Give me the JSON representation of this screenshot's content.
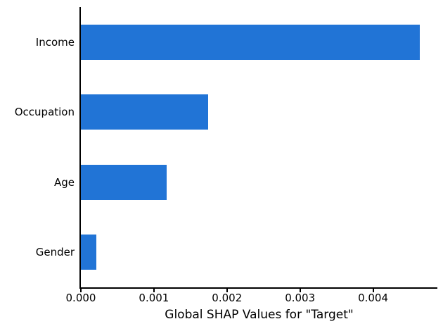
{
  "chart_data": {
    "type": "bar",
    "orientation": "horizontal",
    "title": "",
    "xlabel": "Global SHAP Values for \"Target\"",
    "ylabel": "",
    "categories": [
      "Income",
      "Occupation",
      "Age",
      "Gender"
    ],
    "values": [
      0.00464,
      0.00174,
      0.00117,
      0.00021
    ],
    "xlim": [
      0,
      0.00488
    ],
    "xticks": [
      0,
      0.001,
      0.002,
      0.003,
      0.004
    ],
    "xtick_labels": [
      "0.000",
      "0.001",
      "0.002",
      "0.003",
      "0.004"
    ],
    "bar_color": "#2174d6",
    "axis_color": "#000000",
    "text_color": "#000000",
    "grid": false,
    "legend": null
  }
}
